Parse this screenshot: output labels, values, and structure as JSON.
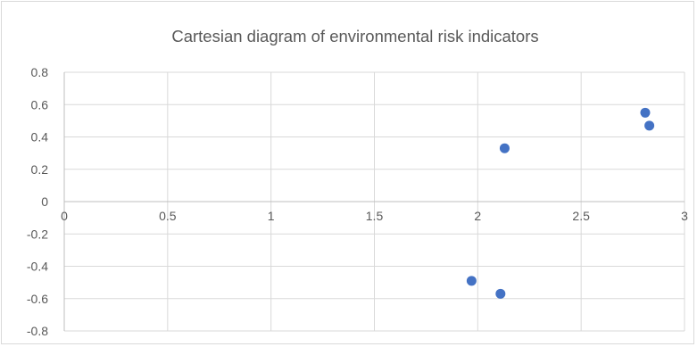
{
  "chart_data": {
    "type": "scatter",
    "title": "Cartesian diagram of environmental risk indicators",
    "xlabel": "",
    "ylabel": "",
    "xlim": [
      0,
      3
    ],
    "ylim": [
      -0.8,
      0.8
    ],
    "x_ticks": [
      0,
      0.5,
      1,
      1.5,
      2,
      2.5,
      3
    ],
    "x_tick_labels": [
      "0",
      "0.5",
      "1",
      "1.5",
      "2",
      "2.5",
      "3"
    ],
    "y_ticks": [
      0.8,
      0.6,
      0.4,
      0.2,
      0,
      -0.2,
      -0.4,
      -0.6,
      -0.8
    ],
    "y_tick_labels": [
      "0.8",
      "0.6",
      "0.4",
      "0.2",
      "0",
      "-0.2",
      "-0.4",
      "-0.6",
      "-0.8"
    ],
    "grid": "vertical and horizontal",
    "legend": "none",
    "series": [
      {
        "color": "#4472c4",
        "points": [
          {
            "x": 2.13,
            "y": 0.33
          },
          {
            "x": 2.81,
            "y": 0.55
          },
          {
            "x": 2.83,
            "y": 0.47
          },
          {
            "x": 1.97,
            "y": -0.49
          },
          {
            "x": 2.11,
            "y": -0.57
          }
        ]
      }
    ]
  }
}
